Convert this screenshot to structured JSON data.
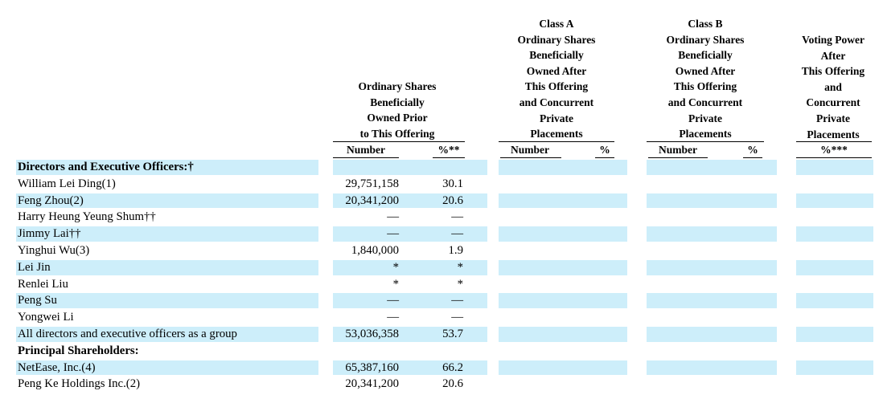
{
  "headers": {
    "prior": [
      "Ordinary Shares",
      "Beneficially",
      "Owned Prior",
      "to This Offering"
    ],
    "classA": [
      "Class A",
      "Ordinary Shares",
      "Beneficially",
      "Owned After",
      "This Offering",
      "and Concurrent",
      "Private",
      "Placements"
    ],
    "classB": [
      "Class B",
      "Ordinary Shares",
      "Beneficially",
      "Owned After",
      "This Offering",
      "and Concurrent",
      "Private",
      "Placements"
    ],
    "voting": [
      "Voting Power",
      "After",
      "This Offering",
      "and",
      "Concurrent",
      "Private",
      "Placements"
    ]
  },
  "subheaders": {
    "prior_number": "Number",
    "prior_pct": "%**",
    "a_number": "Number",
    "a_pct": "%",
    "b_number": "Number",
    "b_pct": "%",
    "voting_pct": "%***"
  },
  "rows": [
    {
      "label": "Directors and Executive Officers:†",
      "number": "",
      "pct": "",
      "section": true
    },
    {
      "label": "William Lei Ding(1)",
      "number": "29,751,158",
      "pct": "30.1"
    },
    {
      "label": "Feng Zhou(2)",
      "number": "20,341,200",
      "pct": "20.6"
    },
    {
      "label": "Harry Heung Yeung Shum††",
      "number": "—",
      "pct": "—"
    },
    {
      "label": "Jimmy Lai††",
      "number": "—",
      "pct": "—"
    },
    {
      "label": "Yinghui Wu(3)",
      "number": "1,840,000",
      "pct": "1.9"
    },
    {
      "label": "Lei Jin",
      "number": "*",
      "pct": "*"
    },
    {
      "label": "Renlei Liu",
      "number": "*",
      "pct": "*"
    },
    {
      "label": "Peng Su",
      "number": "—",
      "pct": "—"
    },
    {
      "label": "Yongwei Li",
      "number": "—",
      "pct": "—"
    },
    {
      "label": "All directors and executive officers as a group",
      "number": "53,036,358",
      "pct": "53.7"
    },
    {
      "label": "Principal Shareholders:",
      "number": "",
      "pct": "",
      "section": true
    },
    {
      "label": "NetEase, Inc.(4)",
      "number": "65,387,160",
      "pct": "66.2"
    },
    {
      "label": "Peng Ke Holdings Inc.(2)",
      "number": "20,341,200",
      "pct": "20.6"
    }
  ],
  "colors": {
    "band": "#cdeefa"
  }
}
